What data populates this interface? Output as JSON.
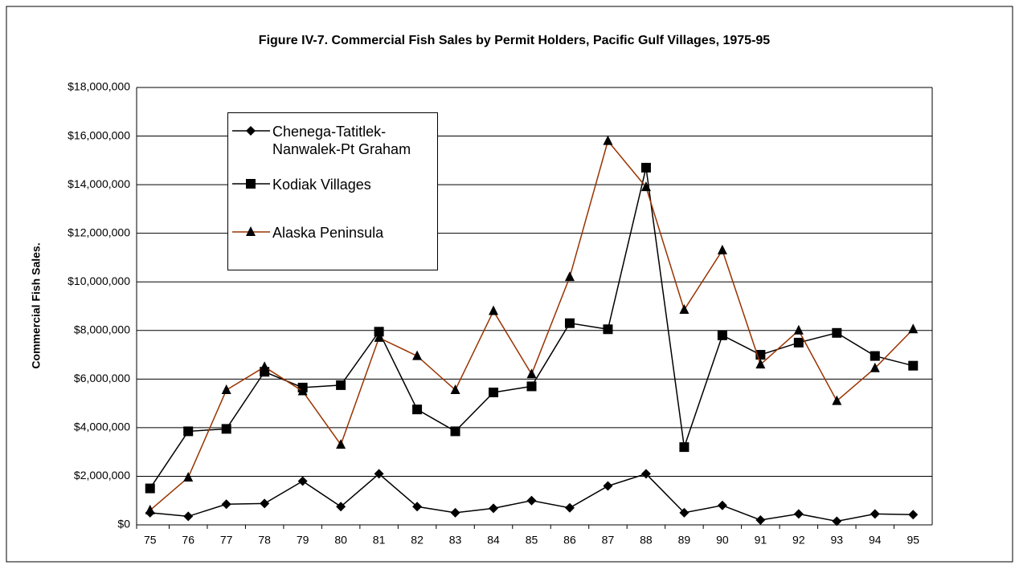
{
  "chart_data": {
    "type": "line",
    "title": "Figure IV-7. Commercial Fish Sales by Permit Holders, Pacific Gulf Villages, 1975-95",
    "y_label": "Commercial Fish Sales.",
    "categories": [
      "75",
      "76",
      "77",
      "78",
      "79",
      "80",
      "81",
      "82",
      "83",
      "84",
      "85",
      "86",
      "87",
      "88",
      "89",
      "90",
      "91",
      "92",
      "93",
      "94",
      "95"
    ],
    "series": [
      {
        "name": "Chenega-Tatitlek-Nanwalek-Pt Graham",
        "color": "#000000",
        "marker": "diamond",
        "values": [
          500000,
          350000,
          850000,
          880000,
          1800000,
          750000,
          2100000,
          750000,
          500000,
          680000,
          1000000,
          700000,
          1600000,
          2100000,
          500000,
          800000,
          200000,
          450000,
          150000,
          450000,
          420000
        ]
      },
      {
        "name": "Kodiak Villages",
        "color": "#000000",
        "marker": "square",
        "values": [
          1500000,
          3850000,
          3950000,
          6300000,
          5650000,
          5750000,
          7950000,
          4750000,
          3850000,
          5450000,
          5700000,
          8300000,
          8050000,
          14700000,
          3200000,
          7800000,
          7000000,
          7500000,
          7900000,
          6950000,
          6550000
        ]
      },
      {
        "name": "Alaska Peninsula",
        "color": "#993300",
        "marker": "triangle",
        "values": [
          600000,
          1950000,
          5550000,
          6500000,
          5500000,
          3300000,
          7700000,
          6950000,
          5550000,
          8800000,
          6200000,
          10200000,
          15800000,
          13900000,
          8850000,
          11300000,
          6600000,
          8000000,
          5100000,
          6450000,
          8050000
        ]
      }
    ],
    "ylim": [
      0,
      18000000
    ],
    "yticks": [
      {
        "value": 0,
        "label": "$0"
      },
      {
        "value": 2000000,
        "label": "$2,000,000"
      },
      {
        "value": 4000000,
        "label": "$4,000,000"
      },
      {
        "value": 6000000,
        "label": "$6,000,000"
      },
      {
        "value": 8000000,
        "label": "$8,000,000"
      },
      {
        "value": 10000000,
        "label": "$10,000,000"
      },
      {
        "value": 12000000,
        "label": "$12,000,000"
      },
      {
        "value": 14000000,
        "label": "$14,000,000"
      },
      {
        "value": 16000000,
        "label": "$16,000,000"
      },
      {
        "value": 18000000,
        "label": "$18,000,000"
      }
    ],
    "grid": true
  }
}
